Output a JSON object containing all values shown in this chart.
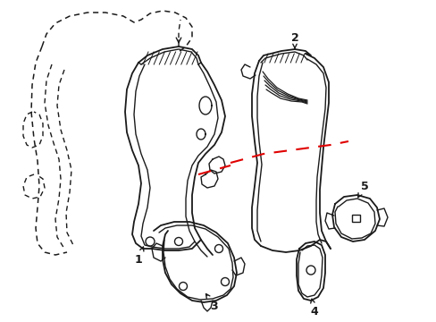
{
  "bg_color": "#ffffff",
  "line_color": "#1a1a1a",
  "red_color": "#e00000",
  "figsize": [
    4.89,
    3.6
  ],
  "dpi": 100
}
